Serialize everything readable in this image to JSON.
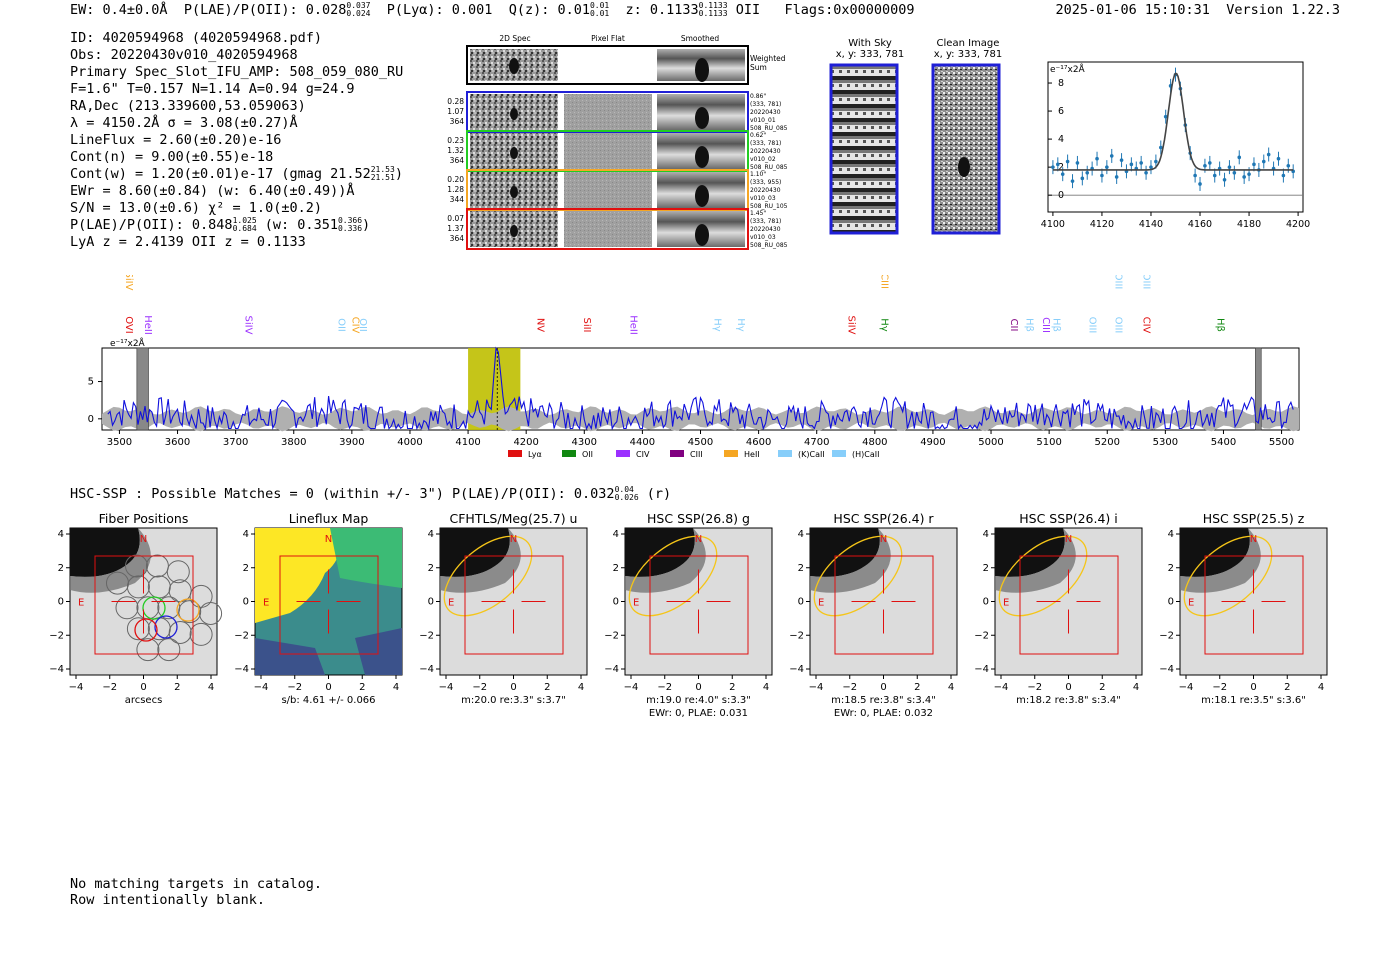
{
  "header": {
    "ew": "EW: 0.4±0.0Å",
    "plae_label": "P(LAE)/P(OII):",
    "plae_value": "0.028",
    "plae_hi": "0.037",
    "plae_lo": "0.024",
    "plya": "P(Lyα): 0.001",
    "qz_label": "Q(z): 0.01",
    "qz_hi": "0.01",
    "qz_lo": "0.01",
    "z_label": "z: 0.1133",
    "z_hi": "0.1133",
    "z_lo": "0.1133",
    "z_line": "OII",
    "flags": "Flags:0x00000009",
    "timestamp": "2025-01-06 15:10:31",
    "version": "Version 1.22.3"
  },
  "info": {
    "id": "ID: 4020594968 (4020594968.pdf)",
    "obs": "Obs: 20220430v010_4020594968",
    "primary": "Primary Spec_Slot_IFU_AMP: 508_059_080_RU",
    "params": "F=1.6\"  T=0.157  N=1.14  A=0.94  g=24.9",
    "radec": "RA,Dec (213.339600,53.059063)",
    "lambda": "λ = 4150.2Å   σ = 3.08(±0.27)Å",
    "lineflux": "LineFlux = 2.60(±0.20)e-16",
    "cont_n": "Cont(n) = 9.00(±0.55)e-18",
    "cont_w": "Cont(w) = 1.20(±0.01)e-17 (gmag 21.52",
    "cont_w_hi": "21.53",
    "cont_w_lo": "21.51",
    "cont_w_end": ")",
    "ewr": "EWr = 8.60(±0.84) (w: 6.40(±0.49))Å",
    "sn": "S/N = 13.0(±0.6)  χ² = 1.0(±0.2)",
    "plae": "P(LAE)/P(OII): 0.848",
    "plae_hi": "1.025",
    "plae_lo": "0.684",
    "plae_w": "(w: 0.351",
    "plae_w_hi": "0.366",
    "plae_w_lo": "0.336",
    "plae_w_end": ")",
    "redshifts": "LyA z = 2.4139   OII z = 0.1133"
  },
  "cutouts": {
    "col_2d": "2D Spec",
    "col_flat": "Pixel Flat",
    "col_smooth": "Smoothed",
    "weighted_label_1": "Weighted",
    "weighted_label_2": "Sum",
    "rows": [
      {
        "w1": "0.28",
        "w2": "1.07",
        "w3": "364",
        "d1": "0.86\"",
        "d2": "(333, 781)",
        "d3": "20220430",
        "d4": "v010_01",
        "d5": "508_RU_085",
        "color": "#1f1fd6"
      },
      {
        "w1": "0.23",
        "w2": "1.32",
        "w3": "364",
        "d1": "0.62\"",
        "d2": "(333, 781)",
        "d3": "20220430",
        "d4": "v010_02",
        "d5": "508_RU_085",
        "color": "#22cc22"
      },
      {
        "w1": "0.20",
        "w2": "1.28",
        "w3": "344",
        "d1": "1.10\"",
        "d2": "(333, 955)",
        "d3": "20220430",
        "d4": "v010_03",
        "d5": "508_RU_105",
        "color": "#f5a623"
      },
      {
        "w1": "0.07",
        "w2": "1.37",
        "w3": "364",
        "d1": "1.45\"",
        "d2": "(333, 781)",
        "d3": "20220430",
        "d4": "v010_03",
        "d5": "508_RU_085",
        "color": "#e01010"
      }
    ],
    "with_sky_title": "With Sky",
    "with_sky_xy": "x, y: 333, 781",
    "clean_title": "Clean Image",
    "clean_xy": "x, y: 333, 781"
  },
  "chart_data": [
    {
      "type": "line",
      "name": "line-fit",
      "title": "",
      "yunit": "e⁻¹⁷x2Å",
      "xlim": [
        4098,
        4202
      ],
      "ylim": [
        -1.2,
        9.5
      ],
      "xticks": [
        4100,
        4120,
        4140,
        4160,
        4180,
        4200
      ],
      "yticks": [
        0,
        2,
        4,
        6,
        8
      ],
      "fit": {
        "center": 4150.2,
        "sigma": 3.08,
        "amplitude": 6.9,
        "continuum": 1.8
      },
      "points": [
        [
          4100,
          2.0
        ],
        [
          4102,
          2.2
        ],
        [
          4104,
          1.5
        ],
        [
          4106,
          2.4
        ],
        [
          4108,
          1.0
        ],
        [
          4110,
          2.3
        ],
        [
          4112,
          1.2
        ],
        [
          4114,
          1.6
        ],
        [
          4116,
          1.9
        ],
        [
          4118,
          2.6
        ],
        [
          4120,
          1.4
        ],
        [
          4122,
          2.0
        ],
        [
          4124,
          2.8
        ],
        [
          4126,
          1.3
        ],
        [
          4128,
          2.5
        ],
        [
          4130,
          1.7
        ],
        [
          4132,
          2.2
        ],
        [
          4134,
          1.9
        ],
        [
          4136,
          2.3
        ],
        [
          4138,
          1.6
        ],
        [
          4140,
          2.0
        ],
        [
          4142,
          2.4
        ],
        [
          4144,
          3.4
        ],
        [
          4146,
          5.6
        ],
        [
          4148,
          7.8
        ],
        [
          4150,
          8.6
        ],
        [
          4152,
          7.6
        ],
        [
          4154,
          5.0
        ],
        [
          4156,
          3.0
        ],
        [
          4158,
          1.4
        ],
        [
          4160,
          0.8
        ],
        [
          4162,
          2.1
        ],
        [
          4164,
          2.3
        ],
        [
          4166,
          1.4
        ],
        [
          4168,
          1.9
        ],
        [
          4170,
          1.1
        ],
        [
          4172,
          2.0
        ],
        [
          4174,
          1.6
        ],
        [
          4176,
          2.7
        ],
        [
          4178,
          1.3
        ],
        [
          4180,
          1.5
        ],
        [
          4182,
          2.2
        ],
        [
          4184,
          1.8
        ],
        [
          4186,
          2.4
        ],
        [
          4188,
          2.9
        ],
        [
          4190,
          1.9
        ],
        [
          4192,
          2.6
        ],
        [
          4194,
          1.4
        ],
        [
          4196,
          2.1
        ],
        [
          4198,
          1.7
        ]
      ]
    },
    {
      "type": "line",
      "name": "full-spectrum",
      "yunit": "e⁻¹⁷x2Å",
      "xlim": [
        3470,
        5530
      ],
      "ylim": [
        -1.5,
        9.5
      ],
      "xticks": [
        3500,
        3600,
        3700,
        3800,
        3900,
        4000,
        4100,
        4200,
        4300,
        4400,
        4500,
        4600,
        4700,
        4800,
        4900,
        5000,
        5100,
        5200,
        5300,
        5400,
        5500
      ],
      "yticks": [
        0,
        5
      ],
      "highlight_range": [
        4100,
        4190
      ],
      "line_center": 4150.2,
      "masked_ranges": [
        [
          3530,
          3550
        ],
        [
          5455,
          5465
        ]
      ],
      "legend": [
        "Lyα",
        "OII",
        "CIV",
        "CIII",
        "HeII",
        "(K)CaII",
        "(H)CaII"
      ],
      "legend_colors": [
        "#e01010",
        "#118811",
        "#9b30ff",
        "#800080",
        "#f5a623",
        "#87cefa",
        "#87cefa"
      ],
      "markers": [
        {
          "label": "SiIV",
          "x": 3532,
          "row": "top",
          "color": "#f5a623"
        },
        {
          "label": "OVI",
          "x": 3532,
          "row": "mid",
          "color": "#e01010"
        },
        {
          "label": "HeII",
          "x": 3565,
          "row": "mid",
          "color": "#9b30ff"
        },
        {
          "label": "SiIV",
          "x": 3738,
          "row": "mid",
          "color": "#9b30ff"
        },
        {
          "label": "OII",
          "x": 3898,
          "row": "mid",
          "color": "#87cefa"
        },
        {
          "label": "CIV",
          "x": 3922,
          "row": "mid",
          "color": "#f5a623"
        },
        {
          "label": "OII",
          "x": 3935,
          "row": "mid",
          "color": "#87cefa"
        },
        {
          "label": "NV",
          "x": 4240,
          "row": "mid",
          "color": "#e01010"
        },
        {
          "label": "SiII",
          "x": 4320,
          "row": "mid",
          "color": "#e01010"
        },
        {
          "label": "HeII",
          "x": 4400,
          "row": "mid",
          "color": "#9b30ff"
        },
        {
          "label": "Hγ",
          "x": 4545,
          "row": "mid",
          "color": "#87cefa"
        },
        {
          "label": "Hγ",
          "x": 4585,
          "row": "mid",
          "color": "#87cefa"
        },
        {
          "label": "SiIV",
          "x": 4775,
          "row": "mid",
          "color": "#e01010"
        },
        {
          "label": "CIII",
          "x": 4832,
          "row": "top",
          "color": "#f5a623"
        },
        {
          "label": "Hγ",
          "x": 4832,
          "row": "mid",
          "color": "#118811"
        },
        {
          "label": "CII",
          "x": 5055,
          "row": "mid",
          "color": "#800080"
        },
        {
          "label": "Hβ",
          "x": 5082,
          "row": "mid",
          "color": "#87cefa"
        },
        {
          "label": "CIII",
          "x": 5110,
          "row": "mid",
          "color": "#9b30ff"
        },
        {
          "label": "Hβ",
          "x": 5128,
          "row": "mid",
          "color": "#87cefa"
        },
        {
          "label": "OIII",
          "x": 5190,
          "row": "mid",
          "color": "#87cefa"
        },
        {
          "label": "OIII",
          "x": 5235,
          "row": "top",
          "color": "#87cefa"
        },
        {
          "label": "OIII",
          "x": 5235,
          "row": "mid",
          "color": "#87cefa"
        },
        {
          "label": "OIII",
          "x": 5283,
          "row": "top",
          "color": "#87cefa"
        },
        {
          "label": "CIV",
          "x": 5283,
          "row": "mid",
          "color": "#e01010"
        },
        {
          "label": "Hβ",
          "x": 5410,
          "row": "mid",
          "color": "#118811"
        }
      ]
    }
  ],
  "hsc": {
    "title": "HSC-SSP : Possible Matches = 0 (within +/- 3\")  P(LAE)/P(OII): 0.032",
    "title_hi": "0.04",
    "title_lo": "0.026",
    "title_end": "(r)",
    "panels": [
      {
        "title": "Fiber Positions",
        "sub1": "arcsecs",
        "sub2": "",
        "kind": "fiber"
      },
      {
        "title": "Lineflux Map",
        "sub1": "s/b: 4.61 +/- 0.066",
        "sub2": "",
        "kind": "flux"
      },
      {
        "title": "CFHTLS/Meg(25.7) u",
        "sub1": "m:20.0  re:3.3\"  s:3.7\"",
        "sub2": "",
        "kind": "img"
      },
      {
        "title": "HSC SSP(26.8) g",
        "sub1": "m:19.0  re:4.0\"  s:3.3\"",
        "sub2": "EWr: 0, PLAE: 0.031",
        "kind": "img"
      },
      {
        "title": "HSC SSP(26.4) r",
        "sub1": "m:18.5  re:3.8\"  s:3.4\"",
        "sub2": "EWr: 0, PLAE: 0.032",
        "kind": "img"
      },
      {
        "title": "HSC SSP(26.4) i",
        "sub1": "m:18.2  re:3.8\"  s:3.4\"",
        "sub2": "",
        "kind": "img"
      },
      {
        "title": "HSC SSP(25.5) z",
        "sub1": "m:18.1  re:3.5\"  s:3.6\"",
        "sub2": "",
        "kind": "img"
      }
    ],
    "axis_ticks": [
      "−4",
      "−2",
      "0",
      "2",
      "4"
    ],
    "north": "N",
    "east": "E"
  },
  "footer": {
    "line1": "No matching targets in catalog.",
    "line2": "Row intentionally blank."
  }
}
